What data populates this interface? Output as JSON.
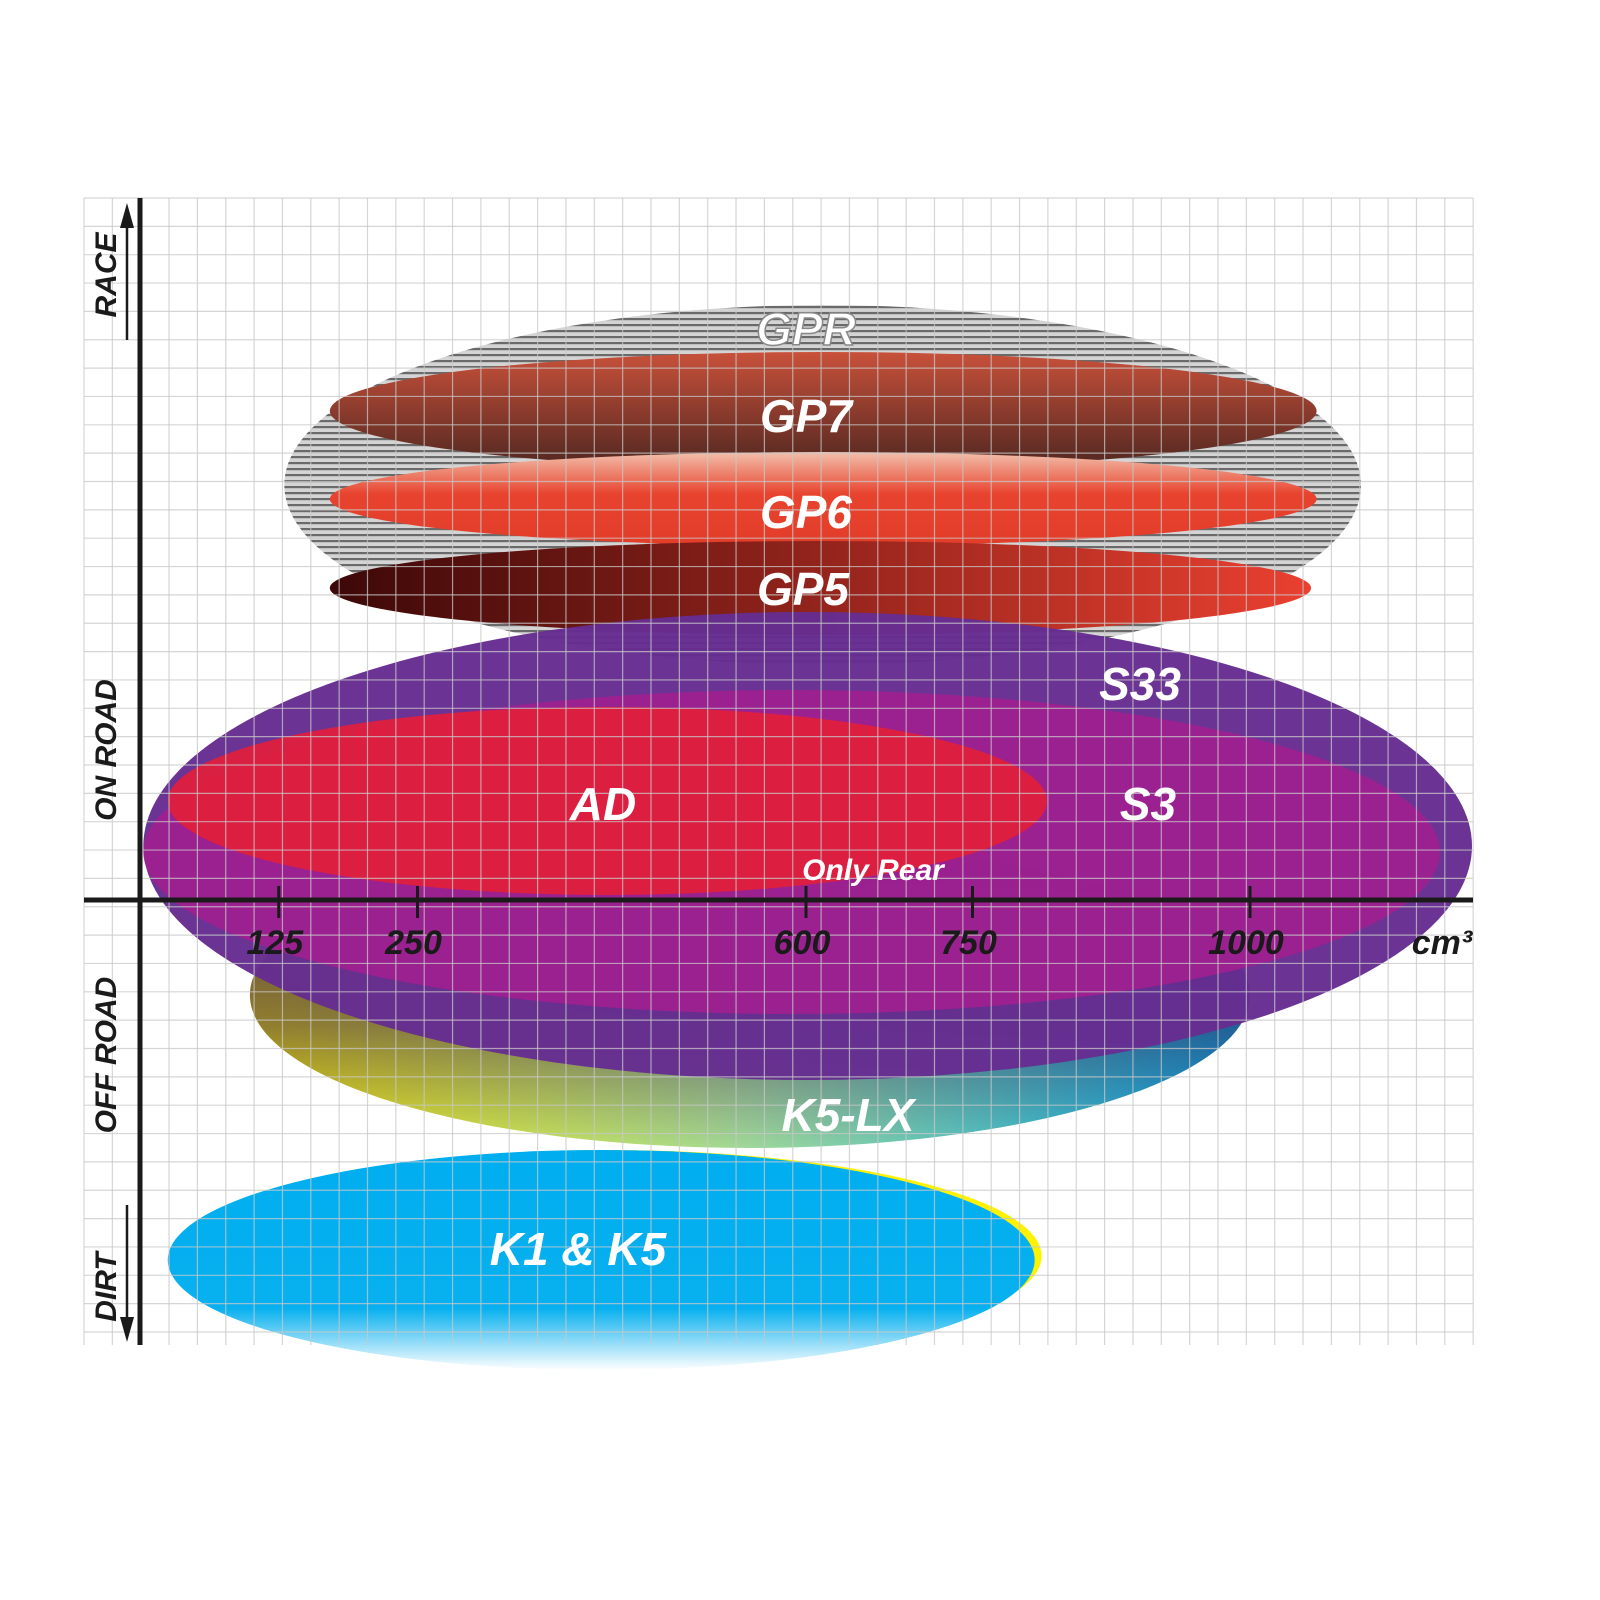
{
  "chart_data": {
    "type": "ellipse-range",
    "xlabel": "cm³",
    "xticks": [
      125,
      250,
      600,
      750,
      1000
    ],
    "xtick_labels": [
      "125",
      "250",
      "600",
      "750",
      "1000"
    ],
    "y_categories": [
      "RACE",
      "ON ROAD",
      "OFF ROAD",
      "DIRT"
    ],
    "grid": true,
    "annotation": "Only Rear",
    "series": [
      {
        "name": "GPR",
        "x_range": [
          130,
          1100
        ],
        "color": "#b0b0b0",
        "fill": "striped-gray"
      },
      {
        "name": "GP7",
        "x_range": [
          171,
          1060
        ],
        "colors": [
          "#c9513a",
          "#4e2620"
        ]
      },
      {
        "name": "GP6",
        "x_range": [
          171,
          1060
        ],
        "colors": [
          "#f2b5a0",
          "#e23d2a"
        ]
      },
      {
        "name": "GP5",
        "x_range": [
          171,
          1055
        ],
        "colors": [
          "#3c0808",
          "#ea4030"
        ]
      },
      {
        "name": "S33",
        "x_range": [
          3,
          1200
        ],
        "color": "#662d91"
      },
      {
        "name": "S3",
        "x_range": [
          3,
          1171
        ],
        "color": "#a31f8f"
      },
      {
        "name": "AD",
        "x_range": [
          25,
          817
        ],
        "color": "#df1f3d"
      },
      {
        "name": "K5-LX",
        "x_range": [
          99,
          1000
        ],
        "colors": [
          "#fff200",
          "#00aeef"
        ]
      },
      {
        "name": "K1 & K5",
        "x_range": [
          25,
          806
        ],
        "color": "#00aeef"
      }
    ]
  }
}
